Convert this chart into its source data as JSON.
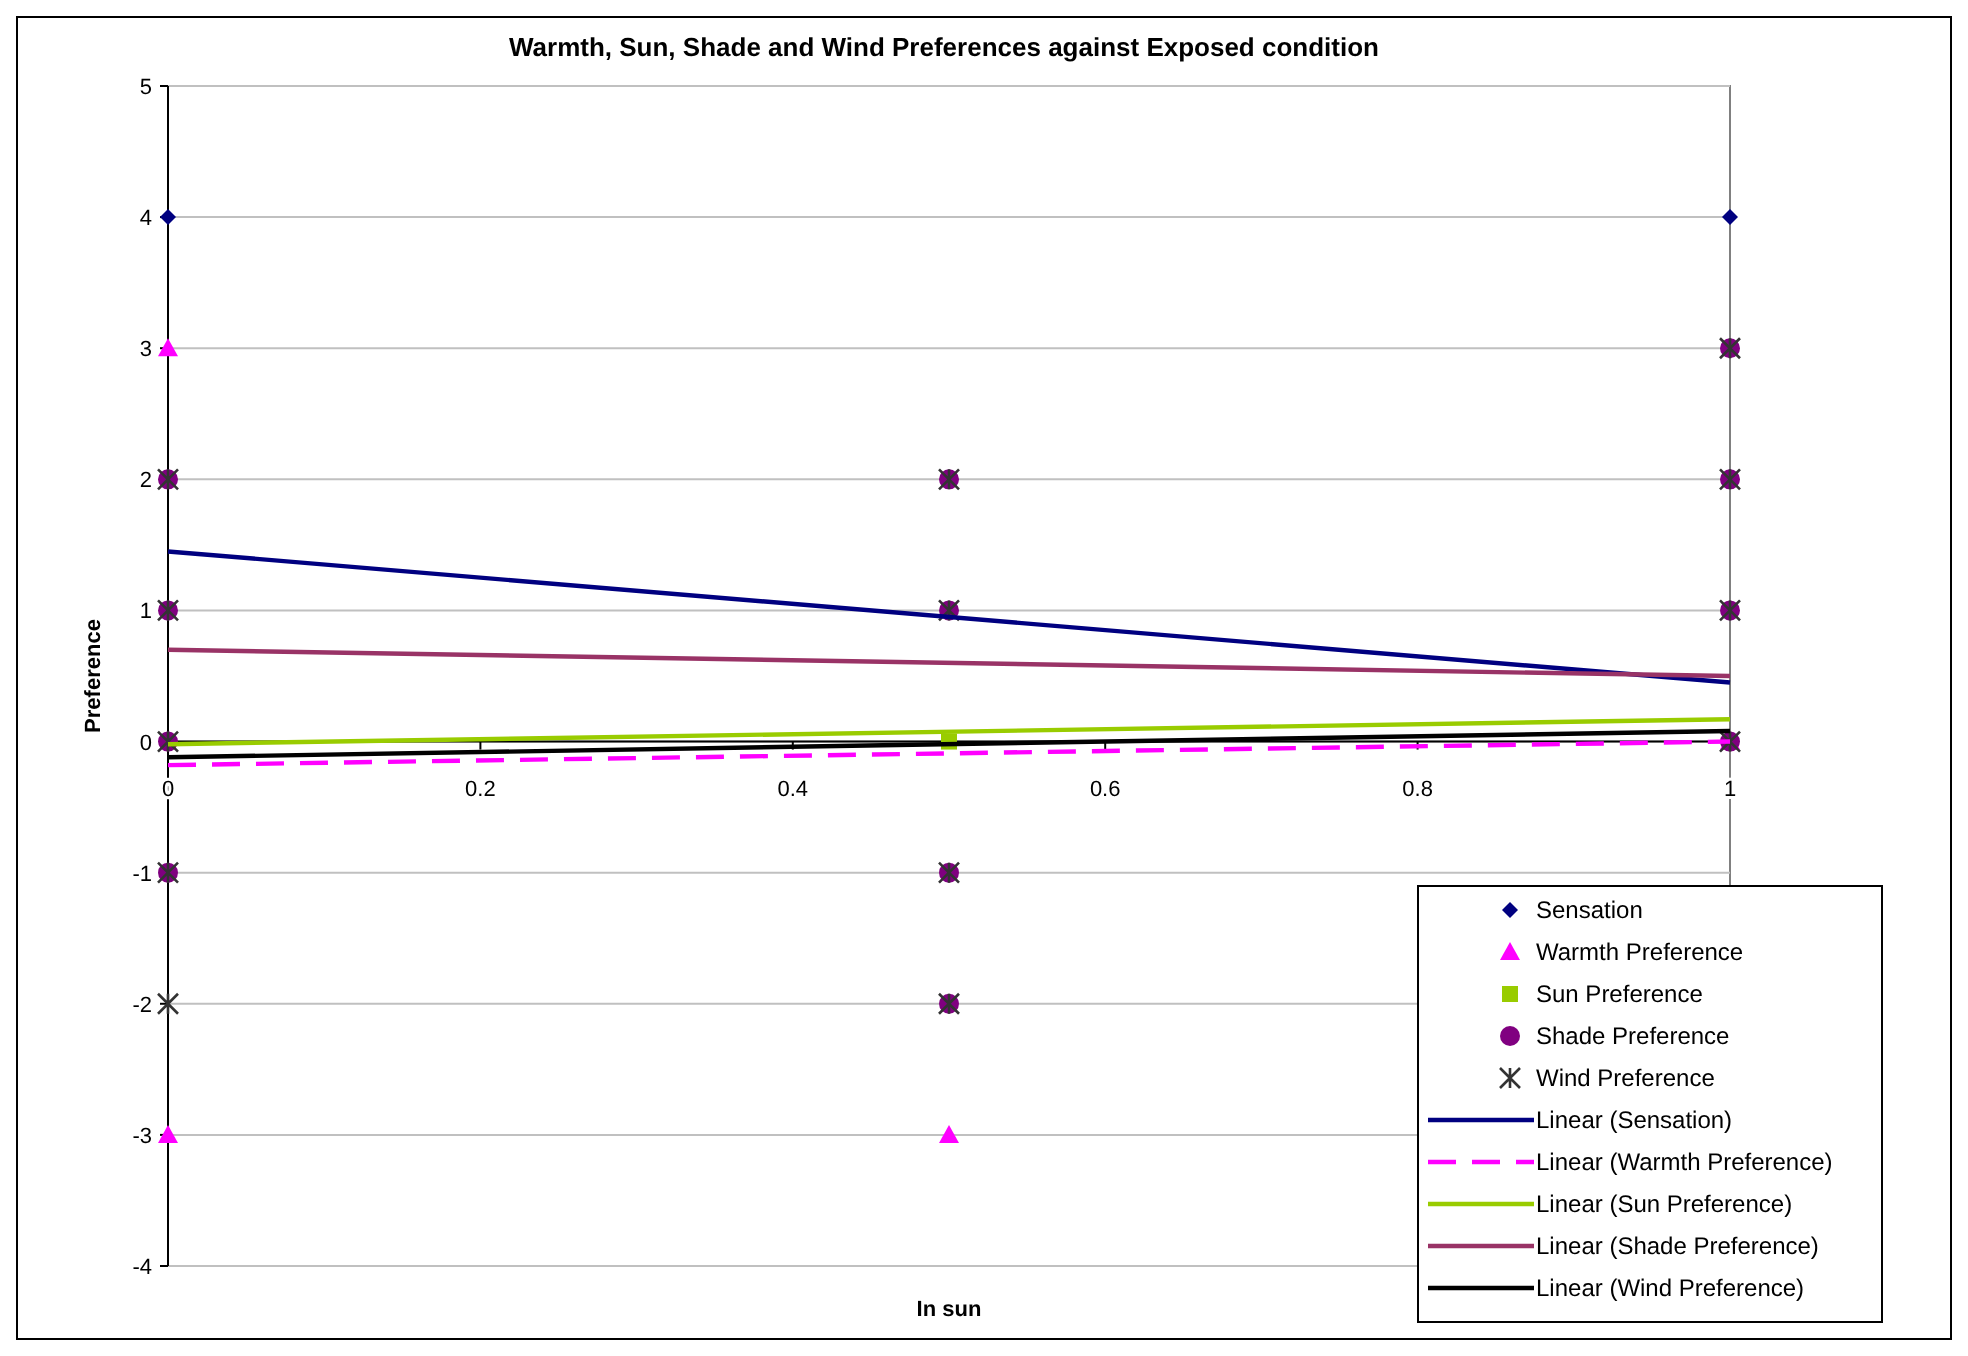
{
  "chart_data": {
    "type": "scatter",
    "title": "Warmth, Sun, Shade and Wind Preferences against Exposed condition",
    "xlabel": "In sun",
    "ylabel": "Preference",
    "xlim": [
      0,
      1
    ],
    "xticks": [
      0,
      0.2,
      0.4,
      0.6,
      0.8,
      1
    ],
    "ylim": [
      -4,
      5
    ],
    "yticks": [
      -4,
      -3,
      -2,
      -1,
      0,
      1,
      2,
      3,
      4,
      5
    ],
    "grid": "y",
    "legend": "bottom right",
    "series": [
      {
        "name": "Sensation",
        "color": "#000080",
        "marker": "diamond",
        "x": [
          0,
          1
        ],
        "values": [
          4,
          4
        ]
      },
      {
        "name": "Warmth Preference",
        "color": "#ff00ff",
        "marker": "triangle",
        "x": [
          0,
          0,
          0.5,
          1
        ],
        "values": [
          3,
          -3,
          -3,
          0
        ]
      },
      {
        "name": "Sun Preference",
        "color": "#99cc00",
        "marker": "square",
        "x": [
          0.5
        ],
        "values": [
          0
        ]
      },
      {
        "name": "Shade Preference",
        "color": "#800080",
        "marker": "circle",
        "x": [
          0,
          0,
          0,
          0,
          0.5,
          0.5,
          0.5,
          0.5,
          1,
          1,
          1,
          1
        ],
        "values": [
          2,
          1,
          0,
          -1,
          2,
          1,
          -1,
          -2,
          3,
          2,
          1,
          0
        ]
      },
      {
        "name": "Wind Preference",
        "color": "#333333",
        "marker": "cross",
        "x": [
          0,
          0,
          0,
          0,
          0,
          0.5,
          0.5,
          0.5,
          0.5,
          1,
          1,
          1,
          1
        ],
        "values": [
          2,
          1,
          0,
          -1,
          -2,
          2,
          1,
          -1,
          -2,
          3,
          2,
          1,
          0
        ]
      },
      {
        "name": "Linear (Sensation)",
        "type": "line",
        "color": "#000080",
        "line_style": "solid",
        "x": [
          0,
          1
        ],
        "values": [
          1.45,
          0.45
        ]
      },
      {
        "name": "Linear (Warmth Preference)",
        "type": "line",
        "color": "#ff00ff",
        "line_style": "dashed",
        "x": [
          0,
          1
        ],
        "values": [
          -0.18,
          0
        ]
      },
      {
        "name": "Linear (Sun Preference)",
        "type": "line",
        "color": "#99cc00",
        "line_style": "solid",
        "x": [
          0,
          1
        ],
        "values": [
          -0.02,
          0.17
        ]
      },
      {
        "name": "Linear (Shade Preference)",
        "type": "line",
        "color": "#993366",
        "line_style": "solid",
        "x": [
          0,
          1
        ],
        "values": [
          0.7,
          0.5
        ]
      },
      {
        "name": "Linear (Wind Preference)",
        "type": "line",
        "color": "#000000",
        "line_style": "solid",
        "x": [
          0,
          1
        ],
        "values": [
          -0.12,
          0.08
        ]
      }
    ]
  }
}
